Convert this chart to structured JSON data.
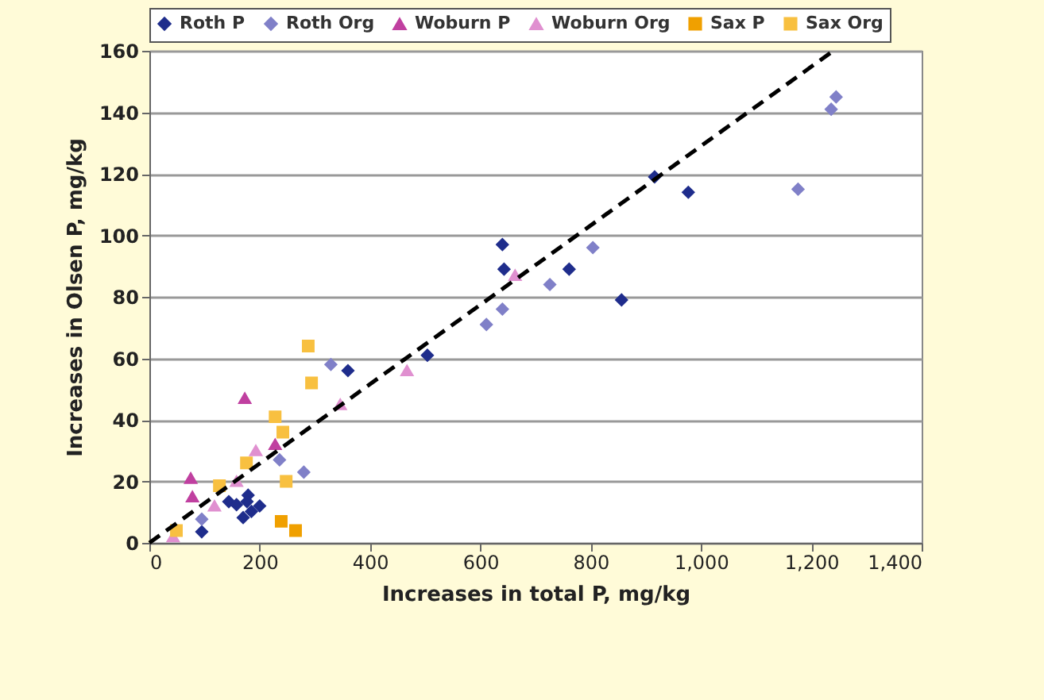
{
  "chart_data": {
    "type": "scatter",
    "xlabel": "Increases in total P, mg/kg",
    "ylabel": "Increases in Olsen P, mg/kg",
    "xlim": [
      0,
      1400
    ],
    "ylim": [
      0,
      160
    ],
    "xticks": [
      0,
      200,
      400,
      600,
      800,
      {
        "value": 1000,
        "label": "1,000"
      },
      {
        "value": 1200,
        "label": "1,200"
      },
      {
        "value": 1400,
        "label": "1,400"
      }
    ],
    "yticks": [
      0,
      20,
      40,
      60,
      80,
      100,
      120,
      140,
      160
    ],
    "grid": "y",
    "legend": "top",
    "series": [
      {
        "name": "Roth P",
        "color": "#1f2d8c",
        "marker": "diamond",
        "x": [
          95,
          144,
          158,
          170,
          179,
          177,
          200,
          185,
          360,
          504,
          640,
          643,
          761,
          856,
          916,
          977
        ],
        "values": [
          3.6,
          13.4,
          12.4,
          8.2,
          15.5,
          13.4,
          12,
          10.2,
          56,
          61,
          97,
          89,
          89,
          79,
          119,
          114
        ]
      },
      {
        "name": "Roth Org",
        "color": "#8080c8",
        "marker": "diamond",
        "x": [
          95,
          236,
          280,
          329,
          611,
          640,
          726,
          804,
          1176,
          1236,
          1245
        ],
        "values": [
          7.7,
          27,
          23,
          58,
          71,
          76,
          84,
          96,
          115,
          141,
          145
        ]
      },
      {
        "name": "Woburn P",
        "color": "#c040a0",
        "marker": "triangle",
        "x": [
          75,
          78,
          173,
          228
        ],
        "values": [
          21,
          15,
          47,
          32
        ]
      },
      {
        "name": "Woburn Org",
        "color": "#e090d0",
        "marker": "triangle",
        "x": [
          43,
          118,
          158,
          193,
          346,
          467,
          663
        ],
        "values": [
          2,
          12,
          20,
          30,
          45,
          56,
          87
        ]
      },
      {
        "name": "Sax P",
        "color": "#f0a000",
        "marker": "square",
        "x": [
          239,
          265
        ],
        "values": [
          7,
          4
        ]
      },
      {
        "name": "Sax Org",
        "color": "#f8c040",
        "marker": "square",
        "x": [
          49,
          127,
          176,
          228,
          242,
          248,
          294,
          288
        ],
        "values": [
          4,
          18.6,
          26,
          41,
          36,
          20,
          52,
          64
        ]
      },
      {
        "type": "line",
        "color": "#000000",
        "line_style": "dashed",
        "marker": "none",
        "x": [
          0,
          1240
        ],
        "values": [
          0,
          160
        ]
      }
    ]
  }
}
